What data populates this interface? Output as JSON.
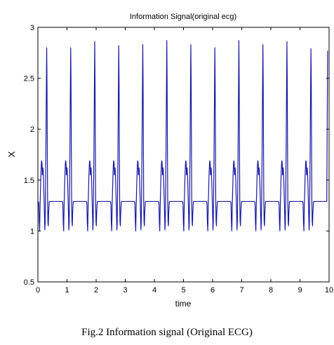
{
  "chart_data": {
    "type": "line",
    "title": "Information Signal(original ecg)",
    "xlabel": "time",
    "ylabel": "X",
    "xlim": [
      0,
      10
    ],
    "ylim": [
      0.5,
      3
    ],
    "xticks": [
      0,
      1,
      2,
      3,
      4,
      5,
      6,
      7,
      8,
      9,
      10
    ],
    "yticks": [
      0.5,
      1,
      1.5,
      2,
      2.5,
      3
    ],
    "xtick_labels": [
      "0",
      "1",
      "2",
      "3",
      "4",
      "5",
      "6",
      "7",
      "8",
      "9",
      "10"
    ],
    "ytick_labels": [
      "0.5",
      "1",
      "1.5",
      "2",
      "2.5",
      "3"
    ],
    "grid": false,
    "series_color": "#1a1aa0",
    "baseline": 1.29,
    "beats": [
      {
        "start": 0.02,
        "r_peak": 2.8
      },
      {
        "start": 0.845,
        "r_peak": 2.8
      },
      {
        "start": 1.67,
        "r_peak": 2.86
      },
      {
        "start": 2.495,
        "r_peak": 2.82
      },
      {
        "start": 3.32,
        "r_peak": 2.83
      },
      {
        "start": 4.145,
        "r_peak": 2.87
      },
      {
        "start": 4.97,
        "r_peak": 2.83
      },
      {
        "start": 5.795,
        "r_peak": 2.8
      },
      {
        "start": 6.62,
        "r_peak": 2.87
      },
      {
        "start": 7.445,
        "r_peak": 2.83
      },
      {
        "start": 8.27,
        "r_peak": 2.86
      },
      {
        "start": 9.095,
        "r_peak": 2.79
      }
    ],
    "beat_shape": [
      [
        0.0,
        0.0
      ],
      [
        0.012,
        -0.02
      ],
      [
        0.025,
        -0.2
      ],
      [
        0.04,
        -0.29
      ],
      [
        0.055,
        -0.05
      ],
      [
        0.07,
        0.12
      ],
      [
        0.085,
        0.28
      ],
      [
        0.1,
        0.38
      ],
      [
        0.11,
        0.4
      ],
      [
        0.122,
        0.37
      ],
      [
        0.133,
        0.26
      ],
      [
        0.145,
        0.32
      ],
      [
        0.155,
        0.33
      ],
      [
        0.165,
        0.28
      ],
      [
        0.178,
        0.18
      ],
      [
        0.192,
        0.02
      ],
      [
        0.206,
        -0.13
      ],
      [
        0.218,
        -0.28
      ],
      [
        0.228,
        -0.22
      ],
      [
        0.24,
        0.05
      ],
      [
        0.255,
        0.5
      ],
      [
        0.27,
        1.1
      ],
      [
        0.282,
        1.51
      ],
      [
        0.292,
        1.2
      ],
      [
        0.302,
        0.6
      ],
      [
        0.313,
        0.0
      ],
      [
        0.325,
        -0.2
      ],
      [
        0.337,
        -0.24
      ],
      [
        0.35,
        -0.1
      ],
      [
        0.37,
        0.0
      ],
      [
        0.825,
        0.0
      ]
    ],
    "end": 9.95,
    "end_value": 2.77
  },
  "caption": "Fig.2 Information signal (Original ECG)"
}
